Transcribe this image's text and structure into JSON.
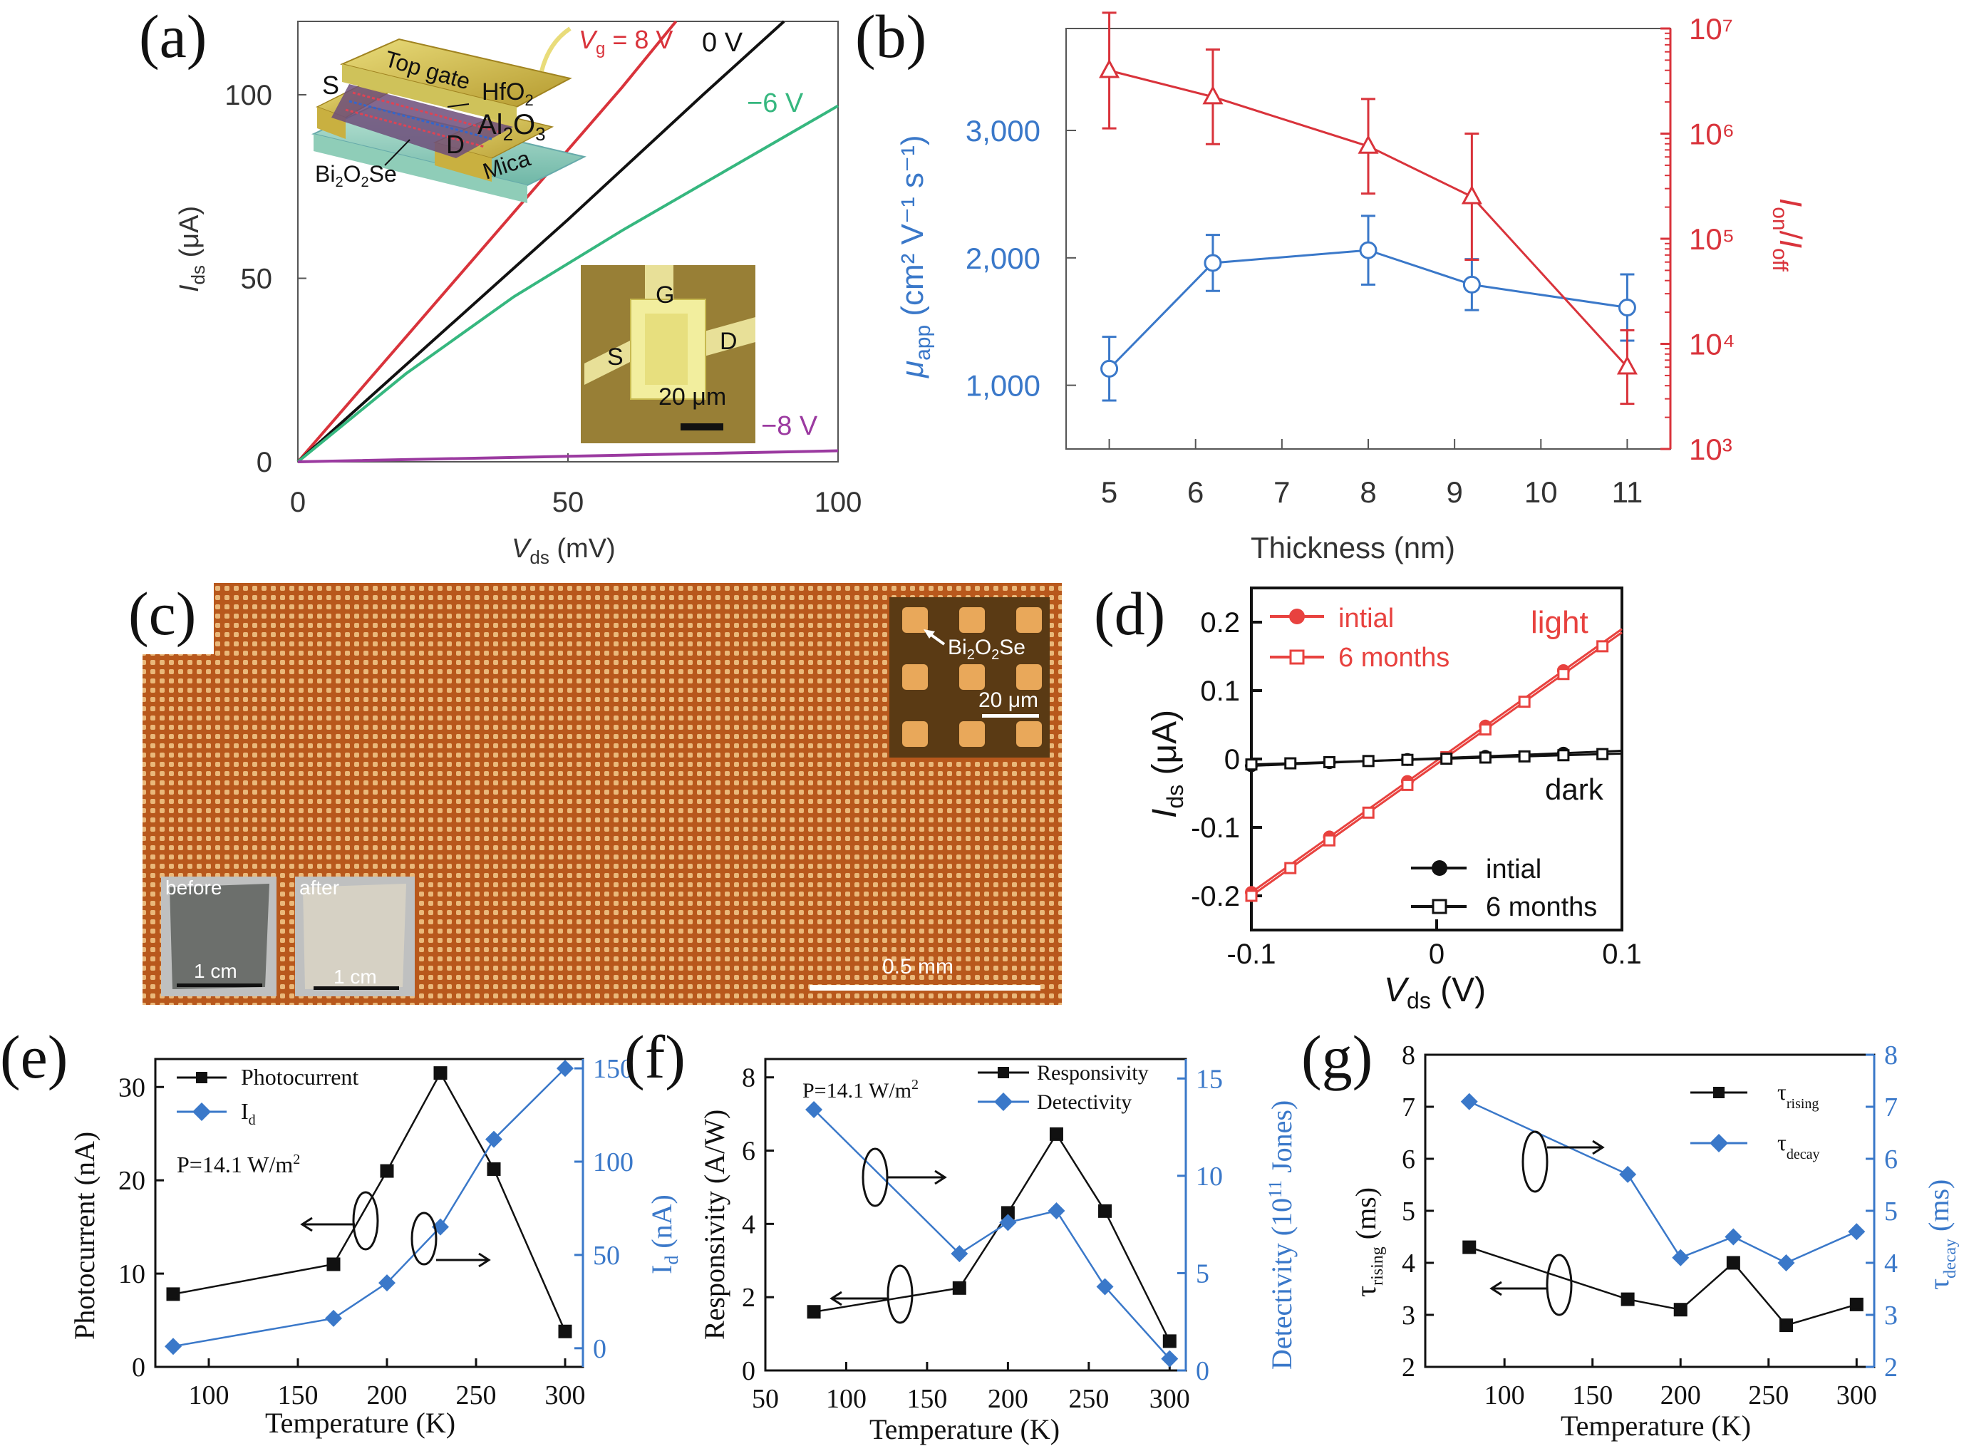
{
  "chart_data": [
    {
      "panel": "(a)",
      "type": "line",
      "xlabel_main": "V",
      "xlabel_sub": "ds",
      "xlabel_unit": " (mV)",
      "ylabel_main": "I",
      "ylabel_sub": "ds",
      "ylabel_unit": " (μA)",
      "xlim": [
        0,
        100
      ],
      "ylim": [
        0,
        120
      ],
      "xticks": [
        "0",
        "50",
        "100"
      ],
      "yticks": [
        "0",
        "50",
        "100"
      ],
      "colors": {
        "8V": "#d9333b",
        "0V": "#111111",
        "m6V": "#36b77f",
        "m8V": "#9b3aa0"
      },
      "series": [
        {
          "key": "8V",
          "name": "Vg = 8 V",
          "x": [
            0,
            20,
            40,
            60,
            70
          ],
          "y": [
            0,
            34,
            68,
            102,
            120
          ]
        },
        {
          "key": "0V",
          "name": "0 V",
          "x": [
            0,
            25,
            50,
            75,
            90
          ],
          "y": [
            0,
            33,
            66,
            100,
            120
          ]
        },
        {
          "key": "m6V",
          "name": "−6 V",
          "x": [
            0,
            20,
            40,
            60,
            80,
            100
          ],
          "y": [
            0,
            24,
            45,
            63,
            80,
            97
          ]
        },
        {
          "key": "m8V",
          "name": "−8 V",
          "x": [
            0,
            50,
            100
          ],
          "y": [
            0,
            1.5,
            3
          ]
        }
      ],
      "labels": {
        "vg_main": "V",
        "vg_sub": "g",
        "vg_rest": " = 8 V",
        "zero": "0 V",
        "m6": "−6 V",
        "m8": "−8 V"
      },
      "inset_device": {
        "top_gate": "Top gate",
        "s": "S",
        "d": "D",
        "hfo2_main": "HfO",
        "hfo2_sub": "2",
        "al_main": "Al",
        "al_sub1": "2",
        "al_o": "O",
        "al_sub2": "3",
        "mica": "Mica",
        "bi_main": "Bi",
        "bi_sub1": "2",
        "bi_o": "O",
        "bi_sub2": "2",
        "bi_se": "Se"
      },
      "inset_photo": {
        "g": "G",
        "s": "S",
        "d": "D",
        "scale": "20 μm"
      }
    },
    {
      "panel": "(b)",
      "type": "line",
      "xlabel": "Thickness (nm)",
      "ylabel_left_main": "μ",
      "ylabel_left_sub": "app",
      "ylabel_left_unit": " (cm² V⁻¹ s⁻¹)",
      "ylabel_right": "I_on/I_off",
      "xlim": [
        4.5,
        11.5
      ],
      "ylim_left": [
        500,
        3800
      ],
      "ylim_right_log": [
        3,
        7
      ],
      "xticks": [
        "5",
        "6",
        "7",
        "8",
        "9",
        "10",
        "11"
      ],
      "yticks_left": [
        "1,000",
        "2,000",
        "3,000"
      ],
      "yticks_right": [
        "10³",
        "10⁴",
        "10⁵",
        "10⁶",
        "10⁷"
      ],
      "colors": {
        "mobility": "#3a78c9",
        "onoff": "#d9333b"
      },
      "series": [
        {
          "key": "mobility",
          "axis": "left",
          "x": [
            5,
            6.2,
            8,
            9.2,
            11
          ],
          "y": [
            1130,
            1960,
            2060,
            1790,
            1610
          ],
          "err": [
            250,
            220,
            270,
            200,
            260
          ]
        },
        {
          "key": "onoff",
          "axis": "right",
          "x": [
            5,
            6.2,
            8,
            9.2,
            11
          ],
          "y_log": [
            6.6,
            6.35,
            5.88,
            5.4,
            3.78
          ],
          "err_log": [
            0.55,
            0.45,
            0.45,
            0.6,
            0.35
          ]
        }
      ]
    },
    {
      "panel": "(c)",
      "type": "image",
      "labels": {
        "bi_main": "Bi",
        "bi_sub1": "2",
        "bi_o": "O",
        "bi_sub2": "2",
        "bi_se": "Se",
        "inset_scale": "20 μm",
        "main_scale": "0.5 mm",
        "before": "before",
        "after": "after",
        "cm1": "1 cm",
        "cm2": "1 cm"
      }
    },
    {
      "panel": "(d)",
      "type": "line",
      "xlabel_main": "V",
      "xlabel_sub": "ds",
      "xlabel_unit": " (V)",
      "ylabel_main": "I",
      "ylabel_sub": "ds",
      "ylabel_unit": " (μA)",
      "xlim": [
        -0.1,
        0.1
      ],
      "ylim": [
        -0.25,
        0.25
      ],
      "xticks": [
        "-0.1",
        "0",
        "0.1"
      ],
      "yticks": [
        "0.2",
        "0.1",
        "0",
        "-0.1",
        "-0.2"
      ],
      "colors": {
        "light": "#e8423f",
        "dark": "#111111"
      },
      "series": [
        {
          "key": "light_initial",
          "name": "intial",
          "x": [
            -0.1,
            0.1
          ],
          "y": [
            -0.195,
            0.19
          ]
        },
        {
          "key": "light_6m",
          "name": "6 months",
          "x": [
            -0.1,
            0.1
          ],
          "y": [
            -0.2,
            0.185
          ]
        },
        {
          "key": "dark_initial",
          "name": "intial",
          "x": [
            -0.1,
            0.1
          ],
          "y": [
            -0.01,
            0.012
          ]
        },
        {
          "key": "dark_6m",
          "name": "6 months",
          "x": [
            -0.1,
            0.1
          ],
          "y": [
            -0.008,
            0.008
          ]
        }
      ],
      "labels": {
        "light": "light",
        "dark": "dark",
        "leg_top_1": "intial",
        "leg_top_2": "6 months",
        "leg_bot_1": "intial",
        "leg_bot_2": "6 months"
      }
    },
    {
      "panel": "(e)",
      "type": "line",
      "xlabel": "Temperature (K)",
      "ylabel_left": "Photocurrent (nA)",
      "ylabel_right_main": "I",
      "ylabel_right_sub": "d",
      "ylabel_right_unit": " (nA)",
      "xlim": [
        70,
        310
      ],
      "ylim_left": [
        0,
        33
      ],
      "ylim_right": [
        -10,
        155
      ],
      "xticks": [
        "100",
        "150",
        "200",
        "250",
        "300"
      ],
      "yticks_left": [
        "0",
        "10",
        "20",
        "30"
      ],
      "yticks_right": [
        "0",
        "50",
        "100",
        "150"
      ],
      "colors": {
        "photocurrent": "#111111",
        "id": "#3a78c9"
      },
      "series": [
        {
          "key": "photocurrent",
          "name": "Photocurrent",
          "x": [
            80,
            170,
            200,
            230,
            260,
            300
          ],
          "y": [
            7.8,
            11,
            21,
            31.5,
            21.2,
            3.8
          ]
        },
        {
          "key": "id",
          "name": "Id",
          "axis": "right",
          "x": [
            80,
            170,
            200,
            230,
            260,
            300
          ],
          "y": [
            1,
            16,
            35,
            65,
            112,
            150
          ]
        }
      ],
      "labels": {
        "power_main": "P=14.1 W/m",
        "power_sup": "2",
        "leg1": "Photocurrent",
        "leg2_main": "I",
        "leg2_sub": "d"
      }
    },
    {
      "panel": "(f)",
      "type": "line",
      "xlabel": "Temperature (K)",
      "ylabel_left": "Responsivity (A/W)",
      "ylabel_right_main": "Detectivity (10",
      "ylabel_right_sup": "11",
      "ylabel_right_rest": " Jones)",
      "xlim": [
        50,
        310
      ],
      "ylim_left": [
        0,
        8.5
      ],
      "ylim_right": [
        0,
        16
      ],
      "xticks": [
        "50",
        "100",
        "150",
        "200",
        "250",
        "300"
      ],
      "yticks_left": [
        "0",
        "2",
        "4",
        "6",
        "8"
      ],
      "yticks_right": [
        "0",
        "5",
        "10",
        "15"
      ],
      "colors": {
        "responsivity": "#111111",
        "detectivity": "#3a78c9"
      },
      "series": [
        {
          "key": "responsivity",
          "name": "Responsivity",
          "x": [
            80,
            170,
            200,
            230,
            260,
            300
          ],
          "y": [
            1.6,
            2.25,
            4.3,
            6.45,
            4.35,
            0.8
          ]
        },
        {
          "key": "detectivity",
          "name": "Detectivity",
          "axis": "right",
          "x": [
            80,
            170,
            200,
            230,
            260,
            300
          ],
          "y": [
            13.4,
            6.0,
            7.6,
            8.2,
            4.3,
            0.6
          ]
        }
      ],
      "labels": {
        "power_main": "P=14.1 W/m",
        "power_sup": "2",
        "leg1": "Responsivity",
        "leg2": "Detectivity"
      }
    },
    {
      "panel": "(g)",
      "type": "line",
      "xlabel": "Temperature (K)",
      "ylabel_left_main": "τ",
      "ylabel_left_sub": "rising",
      "ylabel_left_unit": " (ms)",
      "ylabel_right_main": "τ",
      "ylabel_right_sub": "decay",
      "ylabel_right_unit": " (ms)",
      "xlim": [
        55,
        310
      ],
      "ylim_left": [
        2,
        8
      ],
      "ylim_right": [
        2,
        8
      ],
      "xticks": [
        "100",
        "150",
        "200",
        "250",
        "300"
      ],
      "yticks_left": [
        "2",
        "3",
        "4",
        "5",
        "6",
        "7",
        "8"
      ],
      "yticks_right": [
        "2",
        "3",
        "4",
        "5",
        "6",
        "7",
        "8"
      ],
      "colors": {
        "rising": "#111111",
        "decay": "#3a78c9"
      },
      "series": [
        {
          "key": "rising",
          "name": "τrising",
          "x": [
            80,
            170,
            200,
            230,
            260,
            300
          ],
          "y": [
            4.3,
            3.3,
            3.1,
            4.0,
            2.8,
            3.2
          ]
        },
        {
          "key": "decay",
          "name": "τdecay",
          "axis": "right",
          "x": [
            80,
            170,
            200,
            230,
            260,
            300
          ],
          "y": [
            7.1,
            5.7,
            4.1,
            4.5,
            4.0,
            4.6
          ]
        }
      ],
      "labels": {
        "leg1_main": "τ",
        "leg1_sub": "rising",
        "leg2_main": "τ",
        "leg2_sub": "decay"
      }
    }
  ]
}
